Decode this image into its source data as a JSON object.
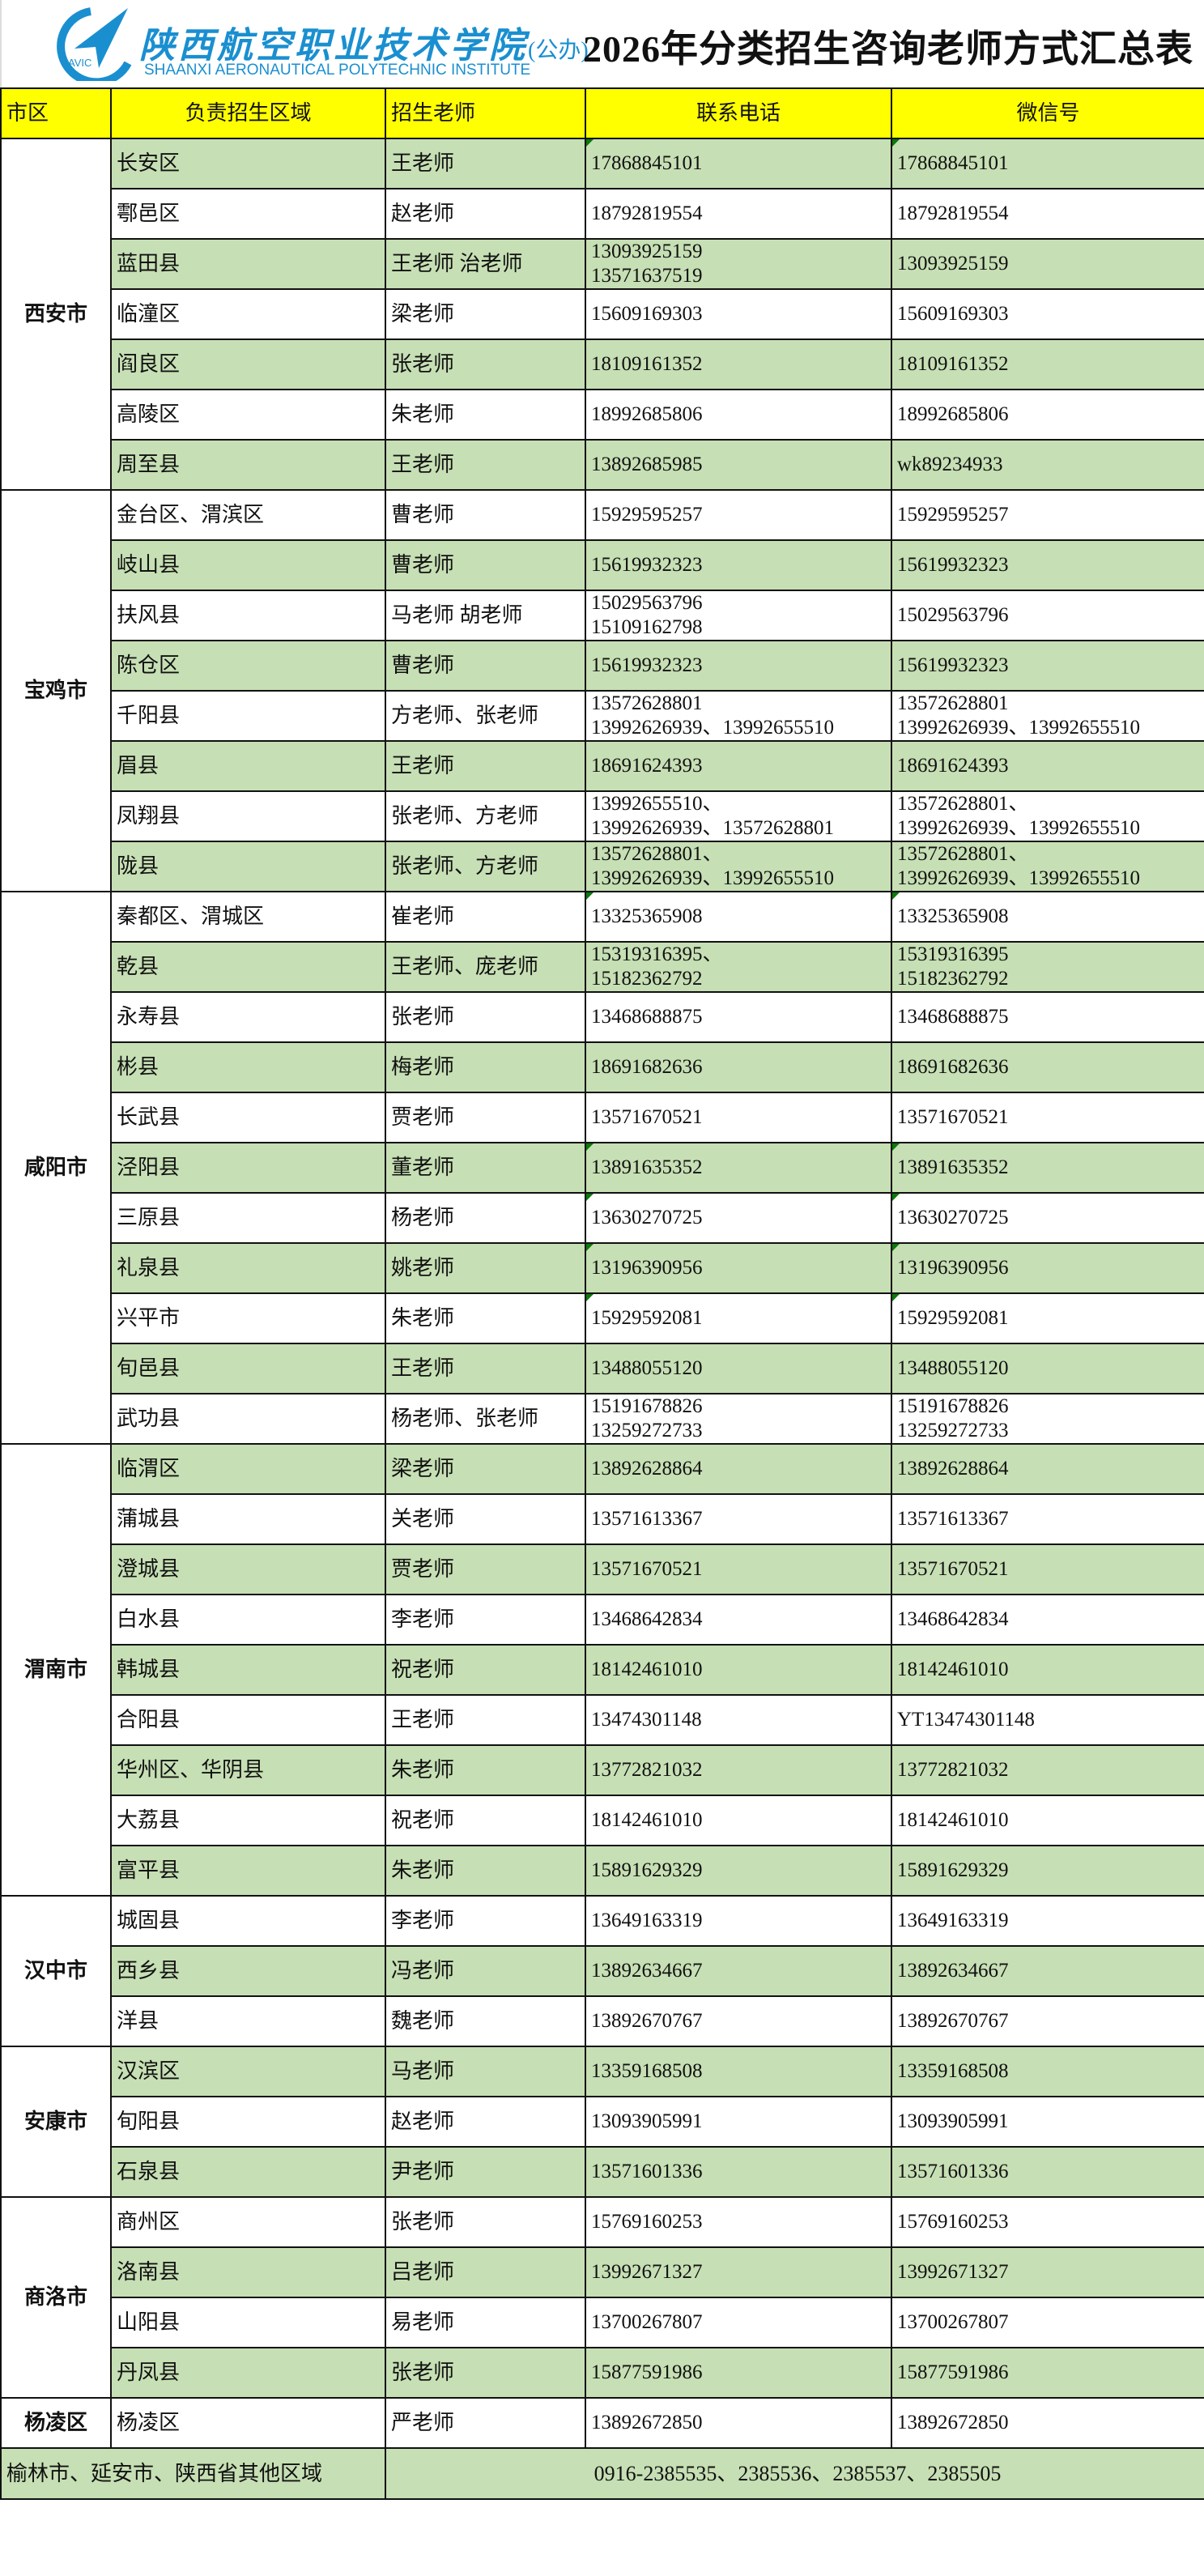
{
  "logo": {
    "cn": "陕西航空职业技术学院",
    "tag": "(公办)",
    "en": "SHAANXI AERONAUTICAL POLYTECHNIC INSTITUTE",
    "mark": "AVIC"
  },
  "title": "2026年分类招生咨询老师方式汇总表",
  "headers": [
    "市区",
    "负责招生区域",
    "招生老师",
    "联系电话",
    "微信号"
  ],
  "colors": {
    "header": "#ffff00",
    "stripe": "#c6dfb4",
    "logo": "#1a8fd0",
    "comment_flag": "#0a7a0a"
  },
  "groups": [
    {
      "city": "西安市",
      "rows": [
        {
          "area": "长安区",
          "teacher": "王老师",
          "phone": [
            "17868845101"
          ],
          "wechat": [
            "17868845101"
          ]
        },
        {
          "area": "鄠邑区",
          "teacher": "赵老师",
          "phone": [
            "18792819554"
          ],
          "wechat": [
            "18792819554"
          ]
        },
        {
          "area": "蓝田县",
          "teacher": "王老师 治老师",
          "phone": [
            "13093925159",
            "13571637519"
          ],
          "wechat": [
            "13093925159"
          ]
        },
        {
          "area": "临潼区",
          "teacher": "梁老师",
          "phone": [
            "15609169303"
          ],
          "wechat": [
            "15609169303"
          ]
        },
        {
          "area": "阎良区",
          "teacher": "张老师",
          "phone": [
            "18109161352"
          ],
          "wechat": [
            "18109161352"
          ]
        },
        {
          "area": "高陵区",
          "teacher": "朱老师",
          "phone": [
            "18992685806"
          ],
          "wechat": [
            "18992685806"
          ]
        },
        {
          "area": "周至县",
          "teacher": "王老师",
          "phone": [
            "13892685985"
          ],
          "wechat": [
            "wk89234933"
          ]
        }
      ]
    },
    {
      "city": "宝鸡市",
      "rows": [
        {
          "area": "金台区、渭滨区",
          "teacher": "曹老师",
          "phone": [
            "15929595257"
          ],
          "wechat": [
            "15929595257"
          ]
        },
        {
          "area": "岐山县",
          "teacher": "曹老师",
          "phone": [
            "15619932323"
          ],
          "wechat": [
            "15619932323"
          ]
        },
        {
          "area": "扶风县",
          "teacher": "马老师 胡老师",
          "phone": [
            "15029563796",
            "15109162798"
          ],
          "wechat": [
            "15029563796"
          ]
        },
        {
          "area": "陈仓区",
          "teacher": "曹老师",
          "phone": [
            "15619932323"
          ],
          "wechat": [
            "15619932323"
          ]
        },
        {
          "area": "千阳县",
          "teacher": "方老师、张老师",
          "phone": [
            "13572628801",
            "13992626939、13992655510"
          ],
          "wechat": [
            "13572628801",
            "13992626939、13992655510"
          ]
        },
        {
          "area": "眉县",
          "teacher": "王老师",
          "phone": [
            "18691624393"
          ],
          "wechat": [
            "18691624393"
          ]
        },
        {
          "area": "凤翔县",
          "teacher": "张老师、方老师",
          "phone": [
            "13992655510、",
            "13992626939、13572628801"
          ],
          "wechat": [
            "13572628801、",
            "13992626939、13992655510"
          ]
        },
        {
          "area": "陇县",
          "teacher": "张老师、方老师",
          "phone": [
            "13572628801、",
            "13992626939、13992655510"
          ],
          "wechat": [
            "13572628801、",
            "13992626939、13992655510"
          ]
        }
      ]
    },
    {
      "city": "咸阳市",
      "rows": [
        {
          "area": "秦都区、渭城区",
          "teacher": "崔老师",
          "phone": [
            "13325365908"
          ],
          "wechat": [
            "13325365908"
          ]
        },
        {
          "area": "乾县",
          "teacher": "王老师、庞老师",
          "phone": [
            "15319316395、",
            "15182362792"
          ],
          "wechat": [
            "15319316395",
            "15182362792"
          ]
        },
        {
          "area": "永寿县",
          "teacher": "张老师",
          "phone": [
            "13468688875"
          ],
          "wechat": [
            "13468688875"
          ]
        },
        {
          "area": "彬县",
          "teacher": "梅老师",
          "phone": [
            "18691682636"
          ],
          "wechat": [
            "18691682636"
          ]
        },
        {
          "area": "长武县",
          "teacher": "贾老师",
          "phone": [
            "13571670521"
          ],
          "wechat": [
            "13571670521"
          ]
        },
        {
          "area": "泾阳县",
          "teacher": "董老师",
          "phone": [
            "13891635352"
          ],
          "wechat": [
            "13891635352"
          ]
        },
        {
          "area": "三原县",
          "teacher": "杨老师",
          "phone": [
            "13630270725"
          ],
          "wechat": [
            "13630270725"
          ]
        },
        {
          "area": "礼泉县",
          "teacher": "姚老师",
          "phone": [
            "13196390956"
          ],
          "wechat": [
            "13196390956"
          ]
        },
        {
          "area": "兴平市",
          "teacher": "朱老师",
          "phone": [
            "15929592081"
          ],
          "wechat": [
            "15929592081"
          ]
        },
        {
          "area": "旬邑县",
          "teacher": "王老师",
          "phone": [
            "13488055120"
          ],
          "wechat": [
            "13488055120"
          ]
        },
        {
          "area": "武功县",
          "teacher": "杨老师、张老师",
          "phone": [
            "15191678826",
            "13259272733"
          ],
          "wechat": [
            "15191678826",
            "13259272733"
          ]
        }
      ]
    },
    {
      "city": "渭南市",
      "rows": [
        {
          "area": "临渭区",
          "teacher": "梁老师",
          "phone": [
            "13892628864"
          ],
          "wechat": [
            "13892628864"
          ]
        },
        {
          "area": "蒲城县",
          "teacher": "关老师",
          "phone": [
            "13571613367"
          ],
          "wechat": [
            "13571613367"
          ]
        },
        {
          "area": "澄城县",
          "teacher": "贾老师",
          "phone": [
            "13571670521"
          ],
          "wechat": [
            "13571670521"
          ]
        },
        {
          "area": "白水县",
          "teacher": "李老师",
          "phone": [
            "13468642834"
          ],
          "wechat": [
            "13468642834"
          ]
        },
        {
          "area": "韩城县",
          "teacher": "祝老师",
          "phone": [
            "18142461010"
          ],
          "wechat": [
            "18142461010"
          ]
        },
        {
          "area": "合阳县",
          "teacher": "王老师",
          "phone": [
            "13474301148"
          ],
          "wechat": [
            "YT13474301148"
          ]
        },
        {
          "area": "华州区、华阴县",
          "teacher": "朱老师",
          "phone": [
            "13772821032"
          ],
          "wechat": [
            "13772821032"
          ]
        },
        {
          "area": "大荔县",
          "teacher": "祝老师",
          "phone": [
            "18142461010"
          ],
          "wechat": [
            "18142461010"
          ]
        },
        {
          "area": "富平县",
          "teacher": "朱老师",
          "phone": [
            "15891629329"
          ],
          "wechat": [
            "15891629329"
          ]
        }
      ]
    },
    {
      "city": "汉中市",
      "rows": [
        {
          "area": "城固县",
          "teacher": "李老师",
          "phone": [
            "13649163319"
          ],
          "wechat": [
            "13649163319"
          ]
        },
        {
          "area": "西乡县",
          "teacher": "冯老师",
          "phone": [
            "13892634667"
          ],
          "wechat": [
            "13892634667"
          ]
        },
        {
          "area": "洋县",
          "teacher": "魏老师",
          "phone": [
            "13892670767"
          ],
          "wechat": [
            "13892670767"
          ]
        }
      ]
    },
    {
      "city": "安康市",
      "rows": [
        {
          "area": "汉滨区",
          "teacher": "马老师",
          "phone": [
            "13359168508"
          ],
          "wechat": [
            "13359168508"
          ]
        },
        {
          "area": "旬阳县",
          "teacher": "赵老师",
          "phone": [
            "13093905991"
          ],
          "wechat": [
            "13093905991"
          ]
        },
        {
          "area": "石泉县",
          "teacher": "尹老师",
          "phone": [
            "13571601336"
          ],
          "wechat": [
            "13571601336"
          ]
        }
      ]
    },
    {
      "city": "商洛市",
      "rows": [
        {
          "area": "商州区",
          "teacher": "张老师",
          "phone": [
            "15769160253"
          ],
          "wechat": [
            "15769160253"
          ]
        },
        {
          "area": "洛南县",
          "teacher": "吕老师",
          "phone": [
            "13992671327"
          ],
          "wechat": [
            "13992671327"
          ]
        },
        {
          "area": "山阳县",
          "teacher": "易老师",
          "phone": [
            "13700267807"
          ],
          "wechat": [
            "13700267807"
          ]
        },
        {
          "area": "丹凤县",
          "teacher": "张老师",
          "phone": [
            "15877591986"
          ],
          "wechat": [
            "15877591986"
          ]
        }
      ]
    },
    {
      "city": "杨凌区",
      "rows": [
        {
          "area": "杨凌区",
          "teacher": "严老师",
          "phone": [
            "13892672850"
          ],
          "wechat": [
            "13892672850"
          ]
        }
      ]
    }
  ],
  "footer": {
    "regions": "榆林市、延安市、陕西省其他区域",
    "phones": "0916-2385535、2385536、2385537、2385505"
  }
}
